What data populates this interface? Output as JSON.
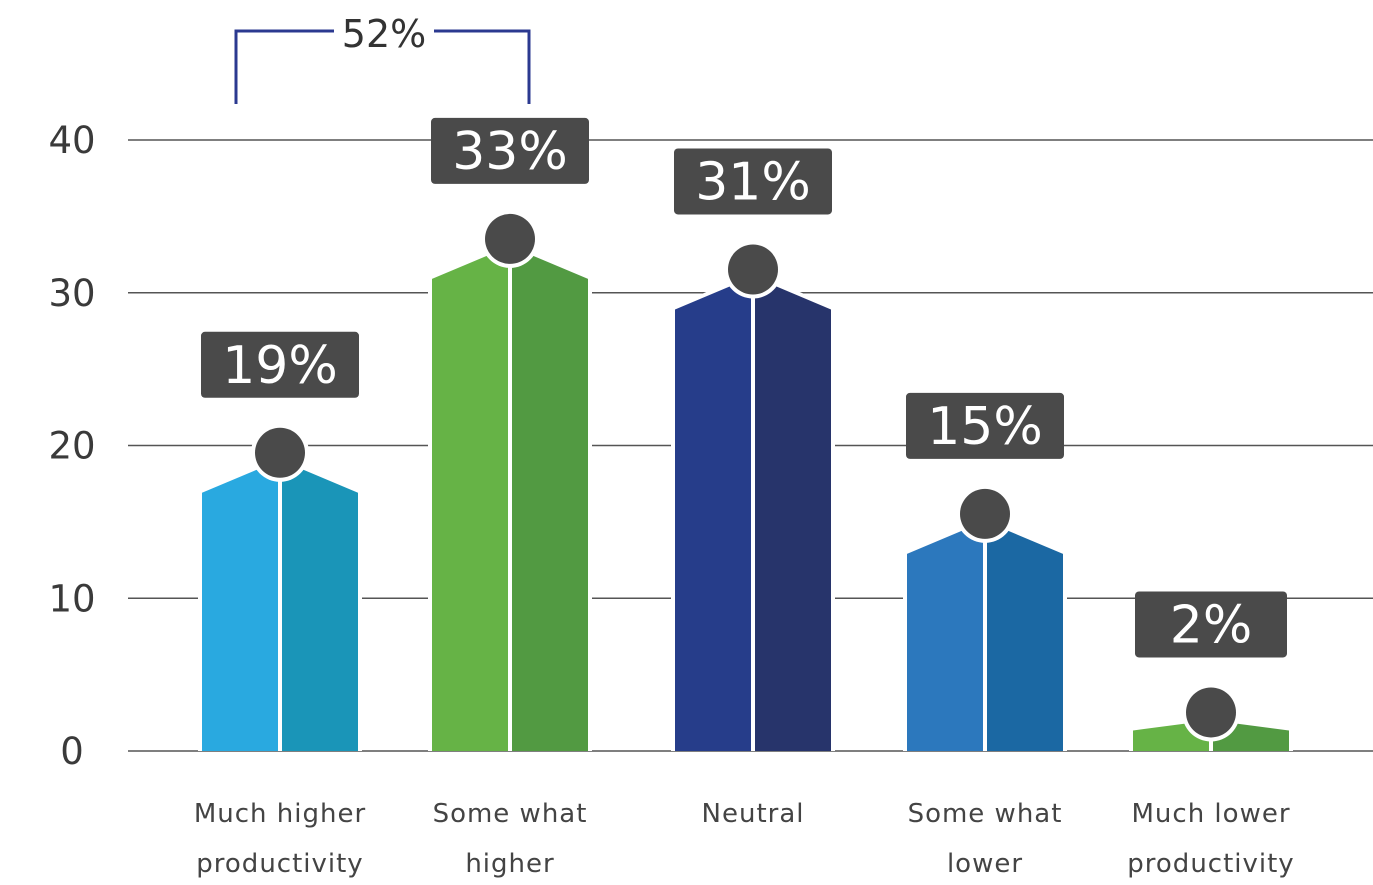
{
  "chart_data": {
    "type": "bar",
    "categories": [
      [
        "Much higher",
        "productivity"
      ],
      [
        "Some what",
        "higher"
      ],
      [
        "Neutral"
      ],
      [
        "Some what",
        "lower"
      ],
      [
        "Much lower",
        "productivity"
      ]
    ],
    "values": [
      19,
      33,
      31,
      15,
      2
    ],
    "labels": [
      "19%",
      "33%",
      "31%",
      "15%",
      "2%"
    ],
    "yticks": [
      0,
      10,
      20,
      30,
      40
    ],
    "ylim": [
      0,
      40
    ],
    "grid": true,
    "bar_style": "person-icon",
    "colors": [
      [
        "#29a9e0",
        "#1a95b8"
      ],
      [
        "#66b346",
        "#529a42"
      ],
      [
        "#263d8a",
        "#27346b"
      ],
      [
        "#2c78bd",
        "#1b68a3"
      ],
      [
        "#66b346",
        "#529a42"
      ]
    ],
    "label_box_color": "#4a4a4a",
    "head_color": "#4a4a4a",
    "annotation": {
      "text": "52%",
      "spans": [
        0,
        1
      ],
      "color": "#2b3990"
    }
  }
}
